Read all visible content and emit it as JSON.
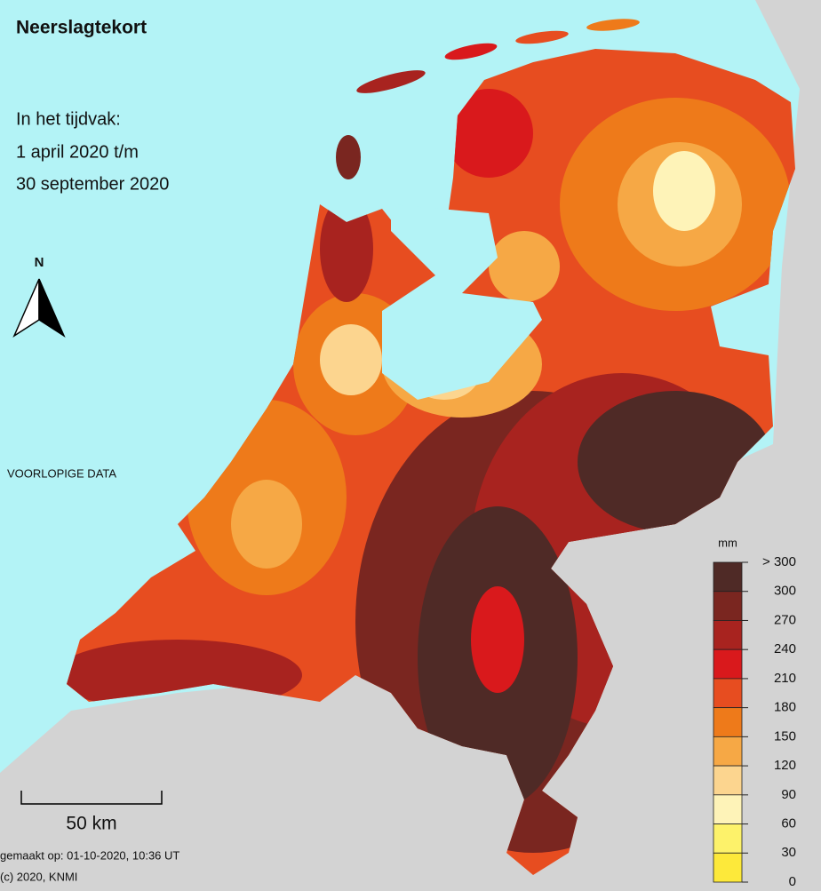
{
  "header": {
    "title": "Neerslagtekort",
    "period": [
      "In het tijdvak:",
      "1 april 2020 t/m",
      "30 september 2020"
    ]
  },
  "map": {
    "preliminary_note": "VOORLOPIGE DATA",
    "north": "N",
    "scale_bar": "50 km",
    "made_on": "gemaakt op: 01-10-2020, 10:36 UT",
    "copyright": "(c) 2020, KNMI"
  },
  "legend": {
    "unit": "mm",
    "labels": [
      "> 300",
      300,
      270,
      240,
      210,
      180,
      150,
      120,
      90,
      60,
      30,
      0
    ],
    "colors": [
      "#4f2a26",
      "#7a2620",
      "#a8231f",
      "#d9191c",
      "#e74d20",
      "#ee7a1a",
      "#f6a845",
      "#fcd58f",
      "#fef3b8",
      "#fdf26a",
      "#fde93a"
    ]
  }
}
